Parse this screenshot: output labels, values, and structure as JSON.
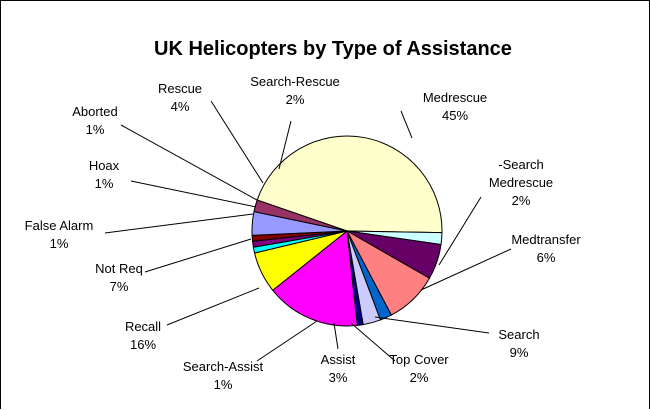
{
  "chart_data": {
    "type": "pie",
    "title": "UK Helicopters by Type of Assistance",
    "slices": [
      {
        "label": "Medrescue",
        "value": 45,
        "display": "45%",
        "color": "#FFFFCC"
      },
      {
        "label": "-Search Medrescue",
        "value": 2,
        "display": "2%",
        "color": "#CCFFFF"
      },
      {
        "label": "Medtransfer",
        "value": 6,
        "display": "6%",
        "color": "#660066"
      },
      {
        "label": "Search",
        "value": 9,
        "display": "9%",
        "color": "#FF8080"
      },
      {
        "label": "Top Cover",
        "value": 2,
        "display": "2%",
        "color": "#0066CC"
      },
      {
        "label": "Assist",
        "value": 3,
        "display": "3%",
        "color": "#CCCCFF"
      },
      {
        "label": "Search-Assist",
        "value": 1,
        "display": "1%",
        "color": "#000080"
      },
      {
        "label": "Recall",
        "value": 16,
        "display": "16%",
        "color": "#FF00FF"
      },
      {
        "label": "Not Req",
        "value": 7,
        "display": "7%",
        "color": "#FFFF00"
      },
      {
        "label": "False Alarm",
        "value": 1,
        "display": "1%",
        "color": "#00FFFF"
      },
      {
        "label": "Hoax",
        "value": 1,
        "display": "1%",
        "color": "#800080"
      },
      {
        "label": "Aborted",
        "value": 1,
        "display": "1%",
        "color": "#800000"
      },
      {
        "label": "Rescue",
        "value": 4,
        "display": "4%",
        "color": "#9999FF"
      },
      {
        "label": "Search-Rescue",
        "value": 2,
        "display": "2%",
        "color": "#993366"
      }
    ],
    "legend": "none"
  }
}
